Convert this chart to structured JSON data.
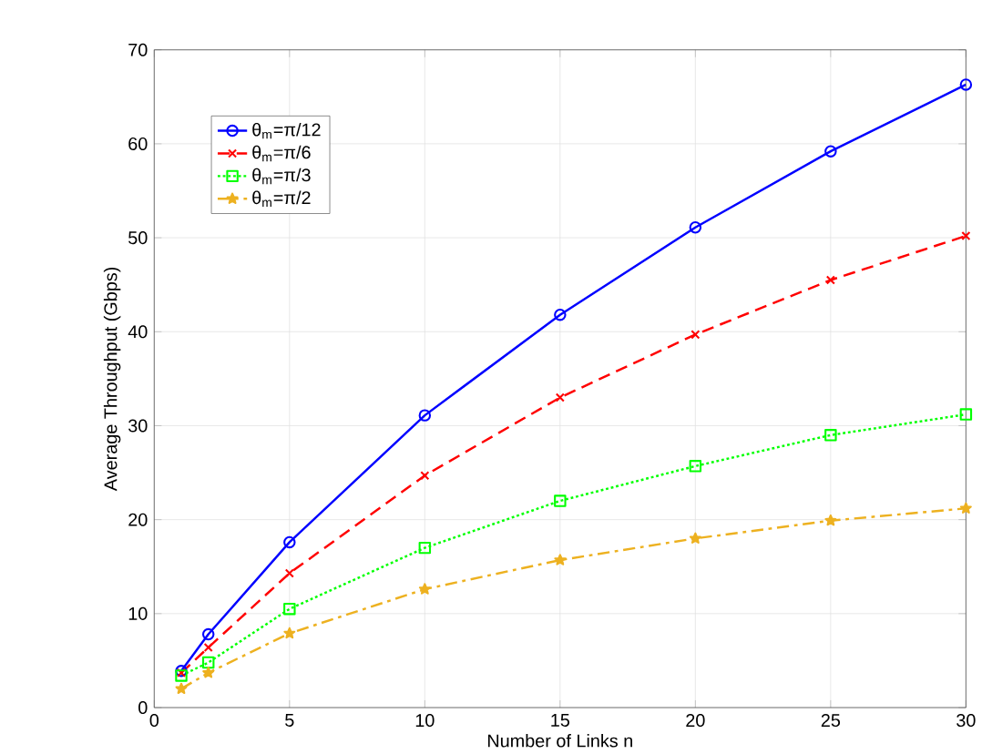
{
  "chart_data": {
    "type": "line",
    "xlabel": "Number of Links n",
    "ylabel": "Average Throughput (Gbps)",
    "x": [
      1,
      2,
      5,
      10,
      15,
      20,
      25,
      30
    ],
    "series": [
      {
        "name": "θ$_{m}$=π/12",
        "color": "#0000ff",
        "marker": "circle",
        "line_style": "solid",
        "values": [
          3.9,
          7.8,
          17.6,
          31.1,
          41.8,
          51.1,
          59.2,
          66.3
        ]
      },
      {
        "name": "θ$_{m}$=π/6",
        "color": "#ff0000",
        "marker": "cross",
        "line_style": "dashed",
        "values": [
          3.7,
          6.4,
          14.3,
          24.7,
          33.0,
          39.7,
          45.5,
          50.2
        ]
      },
      {
        "name": "θ$_{m}$=π/3",
        "color": "#00ff00",
        "marker": "square",
        "line_style": "dotted",
        "values": [
          3.4,
          4.8,
          10.5,
          17.0,
          22.0,
          25.7,
          29.0,
          31.2
        ]
      },
      {
        "name": "θ$_{m}$=π/2",
        "color": "#edb120",
        "marker": "star",
        "line_style": "dashdot",
        "values": [
          2.0,
          3.7,
          7.9,
          12.6,
          15.7,
          18.0,
          19.9,
          21.2
        ]
      }
    ],
    "xlim": [
      0,
      30
    ],
    "xticks": [
      0,
      5,
      10,
      15,
      20,
      25,
      30
    ],
    "ylim": [
      0,
      70
    ],
    "yticks": [
      0,
      10,
      20,
      30,
      40,
      50,
      60,
      70
    ],
    "grid": true,
    "legend": "top left"
  }
}
